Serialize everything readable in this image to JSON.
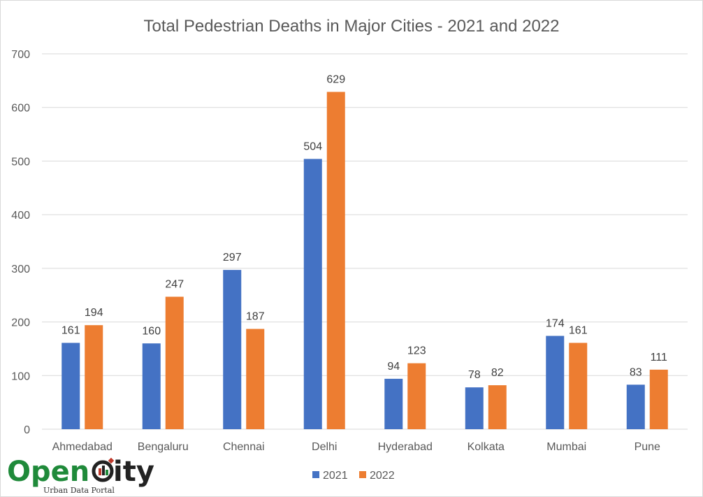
{
  "chart_data": {
    "type": "bar",
    "title": "Total Pedestrian Deaths in Major Cities - 2021 and 2022",
    "categories": [
      "Ahmedabad",
      "Bengaluru",
      "Chennai",
      "Delhi",
      "Hyderabad",
      "Kolkata",
      "Mumbai",
      "Pune"
    ],
    "series": [
      {
        "name": "2021",
        "color": "#4472c4",
        "values": [
          161,
          160,
          297,
          504,
          94,
          78,
          174,
          83
        ]
      },
      {
        "name": "2022",
        "color": "#ed7d31",
        "values": [
          194,
          247,
          187,
          629,
          123,
          82,
          161,
          111
        ]
      }
    ],
    "ylim": [
      0,
      700
    ],
    "yticks": [
      0,
      100,
      200,
      300,
      400,
      500,
      600,
      700
    ],
    "grid": true,
    "legend": "bottom"
  },
  "logo": {
    "name_left": "Open",
    "name_right": "ity",
    "tagline": "Urban Data Portal"
  }
}
